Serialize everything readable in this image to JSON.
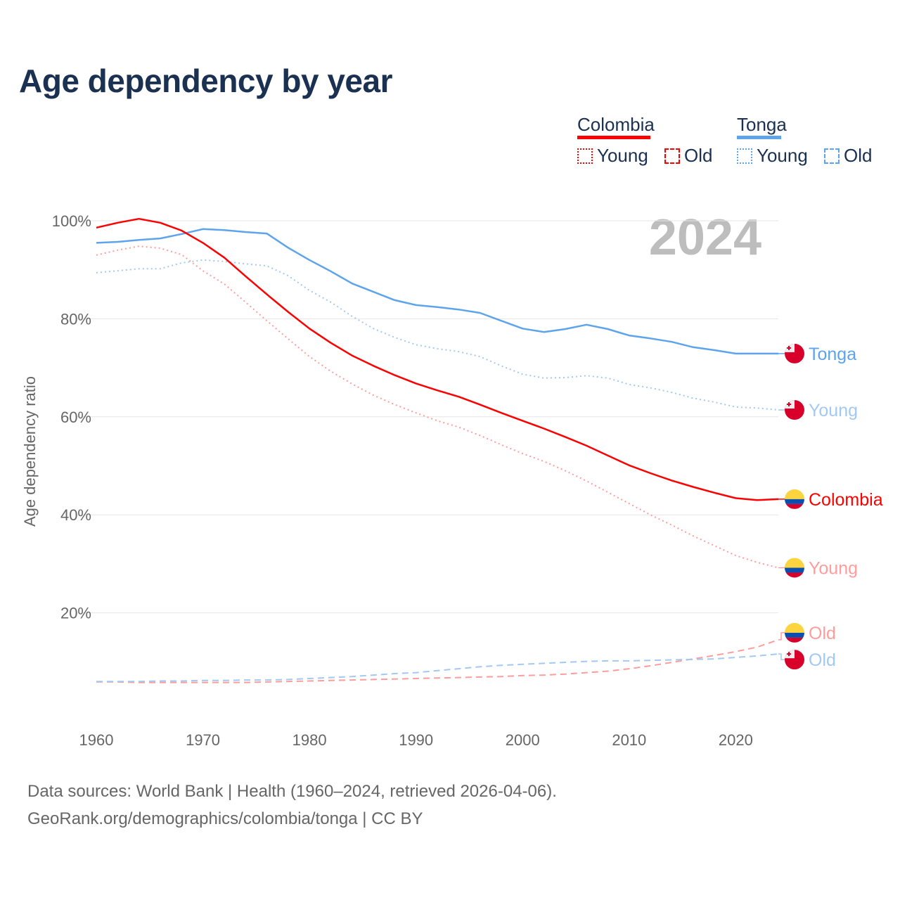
{
  "title": "Age dependency by year",
  "legend": {
    "colombia": {
      "label": "Colombia",
      "young": "Young",
      "old": "Old"
    },
    "tonga": {
      "label": "Tonga",
      "young": "Young",
      "old": "Old"
    }
  },
  "footer": {
    "line1": "Data sources: World Bank | Health (1960–2024, retrieved 2026-04-06).",
    "line2": "GeoRank.org/demographics/colombia/tonga | CC BY"
  },
  "colors": {
    "colombia": "#ff0000",
    "colombia_light": "#ff9c9c",
    "tonga": "#5ea4ec",
    "tonga_light": "#a2c9f3",
    "title": "#1b3152",
    "year_watermark": "#bdbdbd"
  },
  "chart_data": {
    "type": "line",
    "title": "Age dependency by year",
    "ylabel": "Age dependency ratio",
    "xlabel": "",
    "year_display": "2024",
    "xlim": [
      1960,
      2024
    ],
    "ylim": [
      0,
      100
    ],
    "x_ticks": [
      "1960",
      "1970",
      "1980",
      "1990",
      "2000",
      "2010",
      "2020"
    ],
    "y_ticks": [
      "20%",
      "40%",
      "60%",
      "80%",
      "100%"
    ],
    "grid": true,
    "legend_position": "top-right",
    "x": [
      1960,
      1962,
      1964,
      1966,
      1968,
      1970,
      1972,
      1974,
      1976,
      1978,
      1980,
      1982,
      1984,
      1986,
      1988,
      1990,
      1992,
      1994,
      1996,
      1998,
      2000,
      2002,
      2004,
      2006,
      2008,
      2010,
      2012,
      2014,
      2016,
      2018,
      2020,
      2022,
      2024
    ],
    "series": [
      {
        "id": "tonga",
        "name": "Tonga",
        "end_label": "Tonga",
        "country": "tonga",
        "style": "solid",
        "color": "#5ea4ec",
        "values": [
          95.5,
          95.7,
          96.1,
          96.4,
          97.3,
          98.3,
          98.1,
          97.7,
          97.4,
          94.5,
          92,
          89.7,
          87.2,
          85.5,
          83.8,
          82.8,
          82.4,
          81.9,
          81.2,
          79.6,
          78,
          77.3,
          77.9,
          78.8,
          77.9,
          76.6,
          76,
          75.3,
          74.2,
          73.6,
          72.9,
          72.9,
          72.9
        ]
      },
      {
        "id": "tonga-young",
        "name": "Tonga Young",
        "end_label": "Young",
        "country": "tonga",
        "style": "dotted",
        "color": "#a2c9f3",
        "values": [
          89.4,
          89.8,
          90.2,
          90.2,
          91.4,
          92,
          91.7,
          91.2,
          90.8,
          88.8,
          85.8,
          83.4,
          80.5,
          78,
          76.2,
          74.7,
          73.9,
          73.3,
          72.3,
          70.4,
          68.7,
          67.9,
          68,
          68.4,
          67.9,
          66.6,
          65.9,
          65,
          63.8,
          63,
          62,
          61.8,
          61.4
        ]
      },
      {
        "id": "colombia",
        "name": "Colombia",
        "end_label": "Colombia",
        "country": "colombia",
        "style": "solid",
        "color": "#ff0000",
        "values": [
          98.6,
          99.6,
          100.4,
          99.6,
          98,
          95.5,
          92.5,
          88.7,
          85,
          81.4,
          78,
          75.1,
          72.5,
          70.4,
          68.5,
          66.8,
          65.4,
          64.1,
          62.5,
          60.8,
          59.2,
          57.6,
          55.9,
          54.1,
          52.1,
          50.1,
          48.5,
          47,
          45.7,
          44.5,
          43.4,
          43,
          43.2
        ]
      },
      {
        "id": "colombia-young",
        "name": "Colombia Young",
        "end_label": "Young",
        "country": "colombia",
        "style": "dotted",
        "color": "#ff9c9c",
        "values": [
          93,
          94,
          94.8,
          94.4,
          93.1,
          89.8,
          87.1,
          83.4,
          79.6,
          75.9,
          72.3,
          69.3,
          66.7,
          64.4,
          62.5,
          60.8,
          59.2,
          57.9,
          56.2,
          54.3,
          52.5,
          50.9,
          49,
          46.9,
          44.6,
          42.3,
          40,
          37.9,
          35.7,
          33.7,
          31.7,
          30.3,
          29.2
        ]
      },
      {
        "id": "colombia-old",
        "name": "Colombia Old",
        "end_label": "Old",
        "country": "colombia",
        "style": "dashed",
        "color": "#ff9c9c",
        "values": [
          5.9,
          5.9,
          5.8,
          5.8,
          5.8,
          5.8,
          5.8,
          5.8,
          5.9,
          6.0,
          6.1,
          6.2,
          6.3,
          6.4,
          6.5,
          6.6,
          6.7,
          6.8,
          6.9,
          7.0,
          7.2,
          7.3,
          7.5,
          7.8,
          8.1,
          8.6,
          9.2,
          9.9,
          10.6,
          11.3,
          12.1,
          13.0,
          14.5
        ]
      },
      {
        "id": "tonga-old",
        "name": "Tonga Old",
        "end_label": "Old",
        "country": "tonga",
        "style": "dashed",
        "color": "#a2c9f3",
        "values": [
          6.0,
          6.0,
          6.0,
          6.1,
          6.1,
          6.2,
          6.2,
          6.3,
          6.3,
          6.4,
          6.6,
          6.8,
          7.0,
          7.3,
          7.6,
          7.8,
          8.2,
          8.6,
          9.0,
          9.3,
          9.5,
          9.7,
          9.9,
          10.1,
          10.2,
          10.2,
          10.3,
          10.4,
          10.5,
          10.6,
          10.9,
          11.2,
          11.6
        ]
      }
    ]
  }
}
